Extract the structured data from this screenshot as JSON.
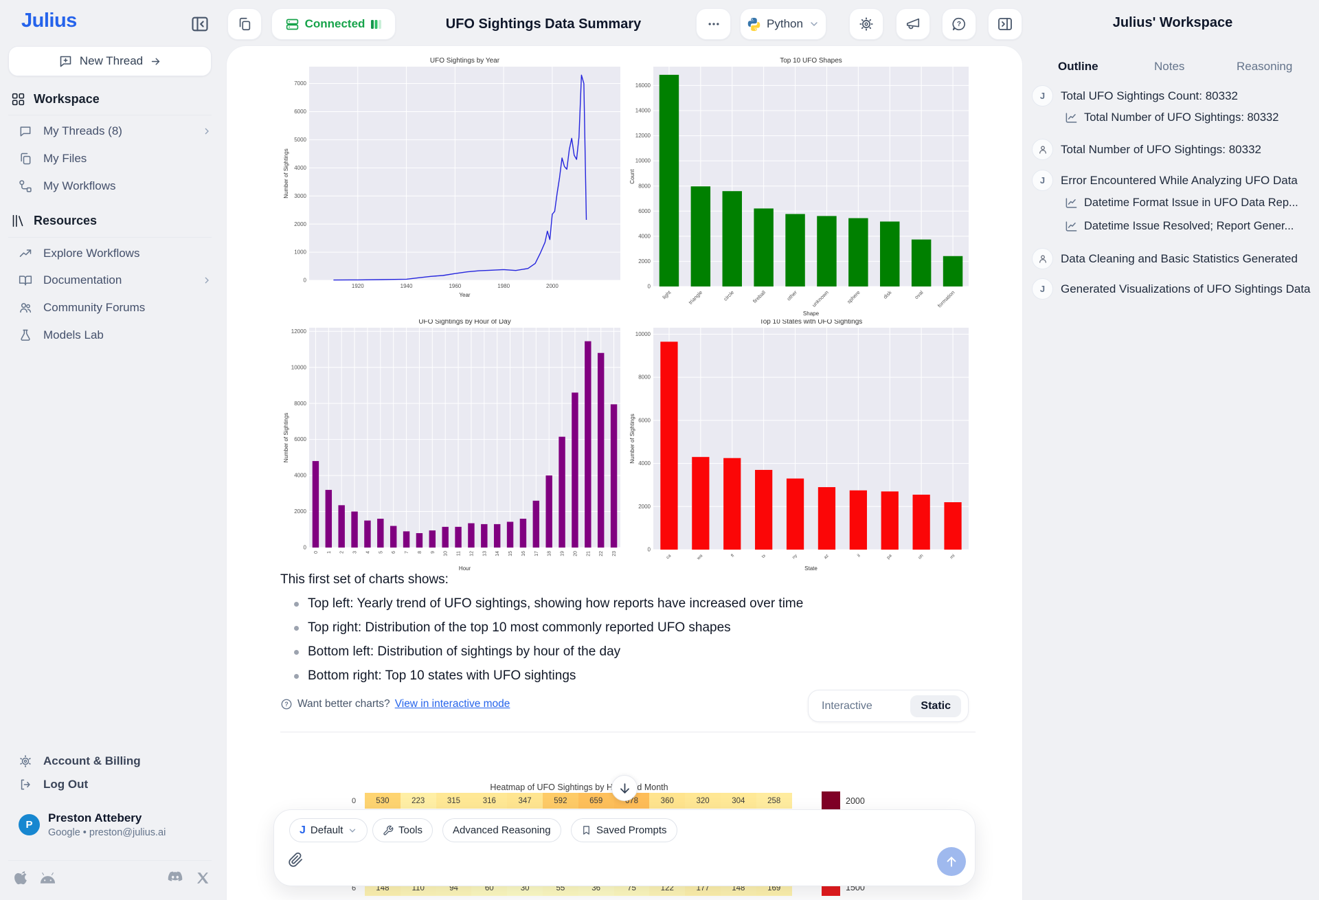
{
  "topbar": {
    "logo": "Julius",
    "connected_label": "Connected",
    "title": "UFO Sightings Data Summary",
    "language": "Python"
  },
  "sidebar": {
    "new_thread": "New Thread",
    "sections": [
      {
        "label": "Workspace",
        "items": [
          {
            "label": "My Threads (8)"
          },
          {
            "label": "My Files"
          },
          {
            "label": "My Workflows"
          }
        ]
      },
      {
        "label": "Resources",
        "items": [
          {
            "label": "Explore Workflows"
          },
          {
            "label": "Documentation"
          },
          {
            "label": "Community Forums"
          },
          {
            "label": "Models Lab"
          }
        ]
      }
    ],
    "account_billing": "Account & Billing",
    "log_out": "Log Out",
    "user": {
      "name": "Preston Attebery",
      "provider_line": "Google • preston@julius.ai",
      "avatar_initial": "P"
    }
  },
  "right_panel": {
    "title": "Julius' Workspace",
    "tabs": [
      "Outline",
      "Notes",
      "Reasoning"
    ],
    "active_tab": "Outline",
    "items": [
      {
        "avatar": "J",
        "text": "Total UFO Sightings Count: 80332"
      },
      {
        "avatar": "person",
        "text": "Total Number of UFO Sightings: 80332"
      },
      {
        "avatar": "J",
        "text": "Error Encountered While Analyzing UFO Data"
      },
      {
        "avatar": "person",
        "text": "Data Cleaning and Basic Statistics Generated"
      },
      {
        "avatar": "J",
        "text": "Generated Visualizations of UFO Sightings Data"
      }
    ],
    "sub_items": {
      "item0": [
        "Total Number of UFO Sightings: 80332"
      ],
      "item2": [
        "Datetime Format Issue in UFO Data Rep...",
        "Datetime Issue Resolved; Report Gener..."
      ]
    }
  },
  "message": {
    "intro": "This first set of charts shows:",
    "bullets": [
      "Top left: Yearly trend of UFO sightings, showing how reports have increased over time",
      "Top right: Distribution of the top 10 most commonly reported UFO shapes",
      "Bottom left: Distribution of sightings by hour of the day",
      "Bottom right: Top 10 states with UFO sightings"
    ],
    "hint_prefix": "Want better charts?",
    "hint_link": "View in interactive mode",
    "toggle": {
      "options": [
        "Interactive",
        "Static"
      ],
      "active": "Static"
    }
  },
  "input_bar": {
    "model_initial": "J",
    "model_pill": "Default",
    "pills": [
      "Tools",
      "Advanced Reasoning",
      "Saved Prompts"
    ]
  },
  "chart_data": [
    {
      "type": "line",
      "title": "UFO Sightings by Year",
      "xlabel": "Year",
      "ylabel": "Number of Sightings",
      "color": "#2424dd",
      "x": [
        1910,
        1920,
        1930,
        1940,
        1945,
        1950,
        1955,
        1960,
        1965,
        1970,
        1975,
        1980,
        1985,
        1990,
        1993,
        1995,
        1997,
        1998,
        1999,
        2000,
        2001,
        2002,
        2003,
        2004,
        2005,
        2006,
        2007,
        2008,
        2009,
        2010,
        2011,
        2012,
        2013,
        2014
      ],
      "y": [
        10,
        15,
        25,
        40,
        90,
        140,
        170,
        240,
        300,
        340,
        360,
        380,
        350,
        420,
        600,
        950,
        1350,
        1750,
        1450,
        2350,
        2450,
        3100,
        3650,
        4350,
        4050,
        3950,
        4650,
        5050,
        4450,
        4300,
        5100,
        7300,
        7000,
        2150
      ],
      "xlim": [
        1900,
        2028
      ],
      "xticks": [
        1920,
        1940,
        1960,
        1980,
        2000
      ],
      "ylim": [
        0,
        7600
      ],
      "ytick_step": 1000,
      "ytick_max": 7000,
      "grid": true
    },
    {
      "type": "bar",
      "title": "Top 10 UFO Shapes",
      "xlabel": "Shape",
      "ylabel": "Count",
      "color": "#008000",
      "categories": [
        "light",
        "triangle",
        "circle",
        "fireball",
        "other",
        "unknown",
        "sphere",
        "disk",
        "oval",
        "formation"
      ],
      "values": [
        16850,
        7970,
        7590,
        6210,
        5770,
        5610,
        5440,
        5170,
        3740,
        2420
      ],
      "ylim": [
        0,
        17500
      ],
      "ytick_step": 2000,
      "ytick_max": 16000,
      "grid": true
    },
    {
      "type": "bar",
      "title": "UFO Sightings by Hour of Day",
      "xlabel": "Hour",
      "ylabel": "Number of Sightings",
      "color": "#800080",
      "categories": [
        "0",
        "1",
        "2",
        "3",
        "4",
        "5",
        "6",
        "7",
        "8",
        "9",
        "10",
        "11",
        "12",
        "13",
        "14",
        "15",
        "16",
        "17",
        "18",
        "19",
        "20",
        "21",
        "22",
        "23"
      ],
      "values": [
        4800,
        3200,
        2350,
        2000,
        1500,
        1600,
        1200,
        900,
        800,
        950,
        1150,
        1150,
        1350,
        1300,
        1300,
        1430,
        1600,
        2600,
        4000,
        6150,
        8600,
        11450,
        10800,
        7950
      ],
      "ylim": [
        0,
        12200
      ],
      "ytick_step": 2000,
      "ytick_max": 12000,
      "grid": true
    },
    {
      "type": "bar",
      "title": "Top 10 States with UFO Sightings",
      "xlabel": "State",
      "ylabel": "Number of Sightings",
      "color": "#fb0607",
      "categories": [
        "ca",
        "wa",
        "fl",
        "tx",
        "ny",
        "az",
        "il",
        "pa",
        "oh",
        "mi"
      ],
      "values": [
        9650,
        4300,
        4250,
        3700,
        3300,
        2900,
        2750,
        2700,
        2550,
        2200
      ],
      "ylim": [
        0,
        10300
      ],
      "ytick_step": 2000,
      "ytick_max": 10000,
      "grid": true
    },
    {
      "type": "heatmap",
      "title": "Heatmap of UFO Sightings by Hour and Month",
      "vmax": 2000,
      "visible_rows": [
        {
          "label": "0",
          "values": [
            530,
            223,
            315,
            316,
            347,
            592,
            659,
            678,
            360,
            320,
            304,
            258
          ]
        },
        {
          "label": "6",
          "values": [
            148,
            110,
            94,
            60,
            30,
            55,
            36,
            75,
            122,
            177,
            148,
            169
          ]
        }
      ],
      "colorbar_ticks": [
        {
          "value": "2000",
          "color": "#800026"
        },
        {
          "value": "1500",
          "color": "#e31a1c"
        }
      ]
    }
  ],
  "colors": {
    "accent_blue": "#2563eb",
    "connected_green": "#16a34a",
    "plot_background": "#eaeaf2",
    "avatar_blue": "#1787d0",
    "send_button": "#9fb9ee"
  }
}
